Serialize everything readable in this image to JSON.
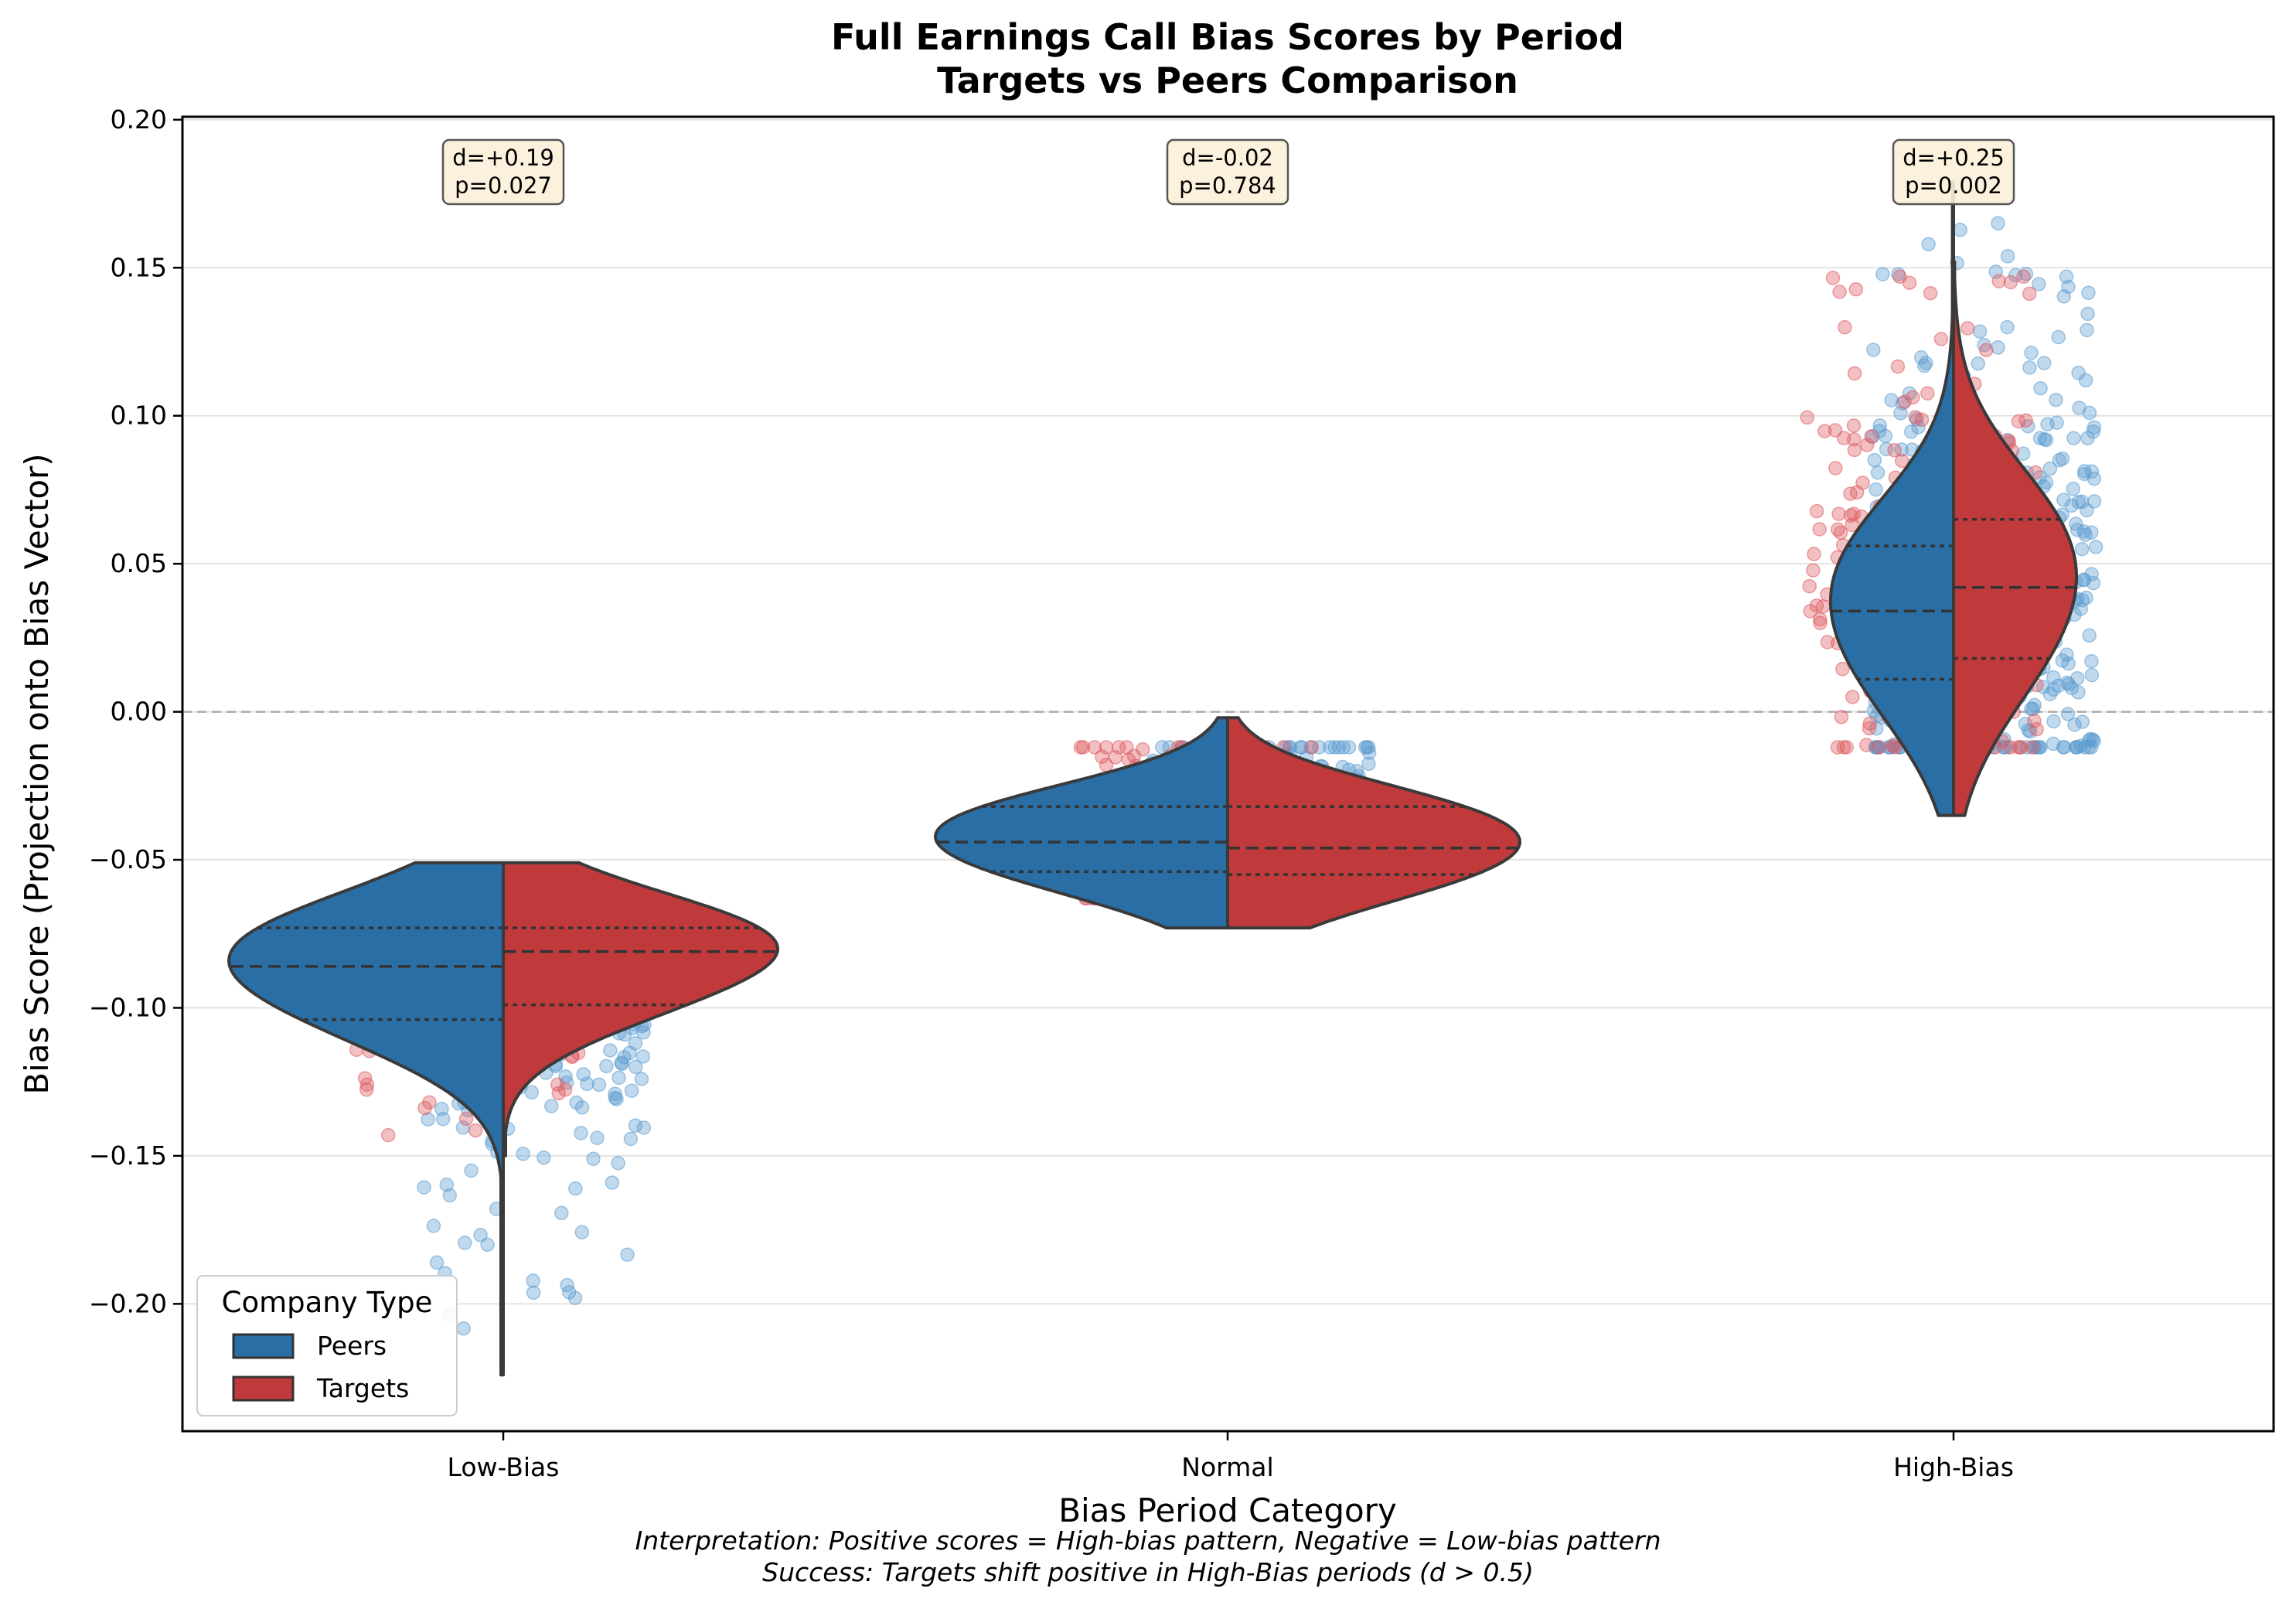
{
  "chart_data": {
    "type": "violin",
    "title": "Full Earnings Call Bias Scores by Period",
    "subtitle": "Targets vs Peers Comparison",
    "xlabel": "Bias Period Category",
    "ylabel": "Bias Score (Projection onto Bias Vector)",
    "categories": [
      "Low-Bias",
      "Normal",
      "High-Bias"
    ],
    "ylim": [
      -0.243,
      0.201
    ],
    "yticks": [
      0.2,
      0.15,
      0.1,
      0.05,
      0.0,
      -0.05,
      -0.1,
      -0.15,
      -0.2
    ],
    "ytick_labels": [
      "0.20",
      "0.15",
      "0.10",
      "0.05",
      "0.00",
      "−0.05",
      "−0.10",
      "−0.15",
      "−0.20"
    ],
    "reference_line": 0.0,
    "grid": "horizontal",
    "legend": {
      "title": "Company Type",
      "placement": "lower-left",
      "entries": [
        {
          "label": "Peers",
          "color": "#2a6ea6"
        },
        {
          "label": "Targets",
          "color": "#c0393b"
        }
      ]
    },
    "series": [
      {
        "name": "Peers",
        "color": "#2a6ea6",
        "point_color": "#5b9ccf",
        "violins": [
          {
            "category": "Low-Bias",
            "q1": -0.104,
            "median": -0.086,
            "q3": -0.073,
            "range": [
              -0.224,
              -0.051
            ]
          },
          {
            "category": "Normal",
            "q1": -0.054,
            "median": -0.044,
            "q3": -0.032,
            "range": [
              -0.073,
              -0.002
            ]
          },
          {
            "category": "High-Bias",
            "q1": 0.011,
            "median": 0.034,
            "q3": 0.056,
            "range": [
              -0.035,
              0.179
            ]
          }
        ],
        "points_range": [
          {
            "category": "Low-Bias",
            "min": -0.212,
            "max": -0.063
          },
          {
            "category": "Normal",
            "min": -0.063,
            "max": -0.012
          },
          {
            "category": "High-Bias",
            "min": -0.012,
            "max": 0.165
          }
        ]
      },
      {
        "name": "Targets",
        "color": "#c0393b",
        "point_color": "#de5a5f",
        "violins": [
          {
            "category": "Low-Bias",
            "q1": -0.099,
            "median": -0.081,
            "q3": -0.073,
            "range": [
              -0.15,
              -0.051
            ]
          },
          {
            "category": "Normal",
            "q1": -0.055,
            "median": -0.046,
            "q3": -0.032,
            "range": [
              -0.073,
              -0.002
            ]
          },
          {
            "category": "High-Bias",
            "q1": 0.018,
            "median": 0.042,
            "q3": 0.065,
            "range": [
              -0.035,
              0.152
            ]
          }
        ],
        "points_range": [
          {
            "category": "Low-Bias",
            "min": -0.143,
            "max": -0.063
          },
          {
            "category": "Normal",
            "min": -0.063,
            "max": -0.012
          },
          {
            "category": "High-Bias",
            "min": -0.012,
            "max": 0.147
          }
        ]
      }
    ],
    "annotations": [
      {
        "category": "Low-Bias",
        "line1": "d=+0.19",
        "line2": "p=0.027"
      },
      {
        "category": "Normal",
        "line1": "d=-0.02",
        "line2": "p=0.784"
      },
      {
        "category": "High-Bias",
        "line1": "d=+0.25",
        "line2": "p=0.002"
      }
    ],
    "footer": [
      "Interpretation: Positive scores = High-bias pattern, Negative = Low-bias pattern",
      "Success: Targets shift positive in High-Bias periods (d > 0.5)"
    ]
  }
}
